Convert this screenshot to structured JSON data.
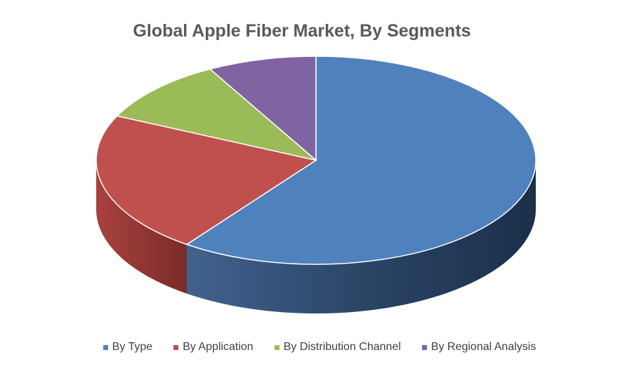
{
  "chart_data": {
    "type": "pie",
    "title": "Global Apple Fiber Market, By Segments",
    "categories": [
      "By Type",
      "By Application",
      "By Distribution Channel",
      "By Regional Analysis"
    ],
    "values": [
      60,
      22,
      10,
      8
    ],
    "colors": [
      "#4f81bd",
      "#c0504d",
      "#9bbb59",
      "#8064a2"
    ],
    "side_colors": [
      "#2a4669",
      "#8e3533"
    ],
    "legend_position": "bottom",
    "style": "3d"
  }
}
